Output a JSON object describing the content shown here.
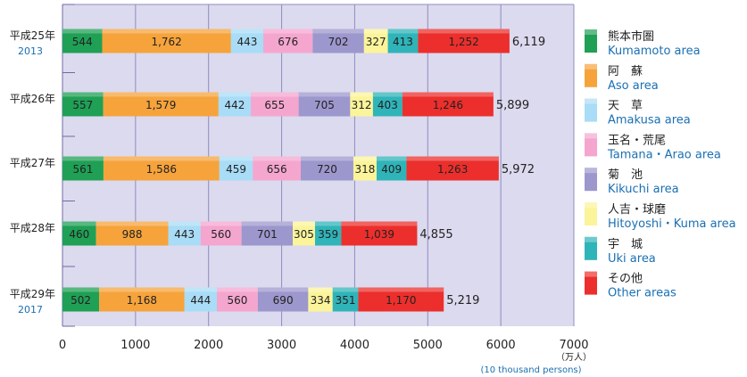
{
  "chart_data": {
    "type": "bar",
    "orientation": "horizontal",
    "stacked": true,
    "categories": [
      {
        "label": "平成25年",
        "sublabel": "2013"
      },
      {
        "label": "平成26年",
        "sublabel": ""
      },
      {
        "label": "平成27年",
        "sublabel": ""
      },
      {
        "label": "平成28年",
        "sublabel": ""
      },
      {
        "label": "平成29年",
        "sublabel": "2017"
      }
    ],
    "series": [
      {
        "name": "熊本市圏",
        "name_en": "Kumamoto area",
        "color": "#1fa055",
        "values": [
          544,
          557,
          561,
          460,
          502
        ]
      },
      {
        "name": "阿　蘇",
        "name_en": "Aso area",
        "color": "#f6a33c",
        "values": [
          1762,
          1579,
          1586,
          988,
          1168
        ]
      },
      {
        "name": "天　草",
        "name_en": "Amakusa area",
        "color": "#a9dcf6",
        "values": [
          443,
          442,
          459,
          443,
          444
        ]
      },
      {
        "name": "玉名・荒尾",
        "name_en": "Tamana・Arao area",
        "color": "#f4a6cf",
        "values": [
          676,
          655,
          656,
          560,
          560
        ]
      },
      {
        "name": "菊　池",
        "name_en": "Kikuchi area",
        "color": "#9c97cc",
        "values": [
          702,
          705,
          720,
          701,
          690
        ]
      },
      {
        "name": "人吉・球磨",
        "name_en": "Hitoyoshi・Kuma area",
        "color": "#fbf49a",
        "values": [
          327,
          312,
          318,
          305,
          334
        ]
      },
      {
        "name": "宇　城",
        "name_en": "Uki area",
        "color": "#2fb4b9",
        "values": [
          413,
          403,
          409,
          359,
          351
        ]
      },
      {
        "name": "その他",
        "name_en": "Other areas",
        "color": "#ec2f2c",
        "values": [
          1252,
          1246,
          1263,
          1039,
          1170
        ]
      }
    ],
    "value_labels": [
      [
        "544",
        "1,762",
        "443",
        "676",
        "702",
        "327",
        "413",
        "1,252"
      ],
      [
        "557",
        "1,579",
        "442",
        "655",
        "705",
        "312",
        "403",
        "1,246"
      ],
      [
        "561",
        "1,586",
        "459",
        "656",
        "720",
        "318",
        "409",
        "1,263"
      ],
      [
        "460",
        "988",
        "443",
        "560",
        "701",
        "305",
        "359",
        "1,039"
      ],
      [
        "502",
        "1,168",
        "444",
        "560",
        "690",
        "334",
        "351",
        "1,170"
      ]
    ],
    "totals": [
      "6,119",
      "5,899",
      "5,972",
      "4,855",
      "5,219"
    ],
    "x_ticks": [
      "0",
      "1000",
      "2000",
      "3000",
      "4000",
      "5000",
      "6000",
      "7000"
    ],
    "xlim": [
      0,
      7000
    ],
    "unit": "（万人）",
    "unit_en": "(10 thousand persons)",
    "grid": true,
    "plot_background": "#dcdaee",
    "legend_position": "right"
  }
}
